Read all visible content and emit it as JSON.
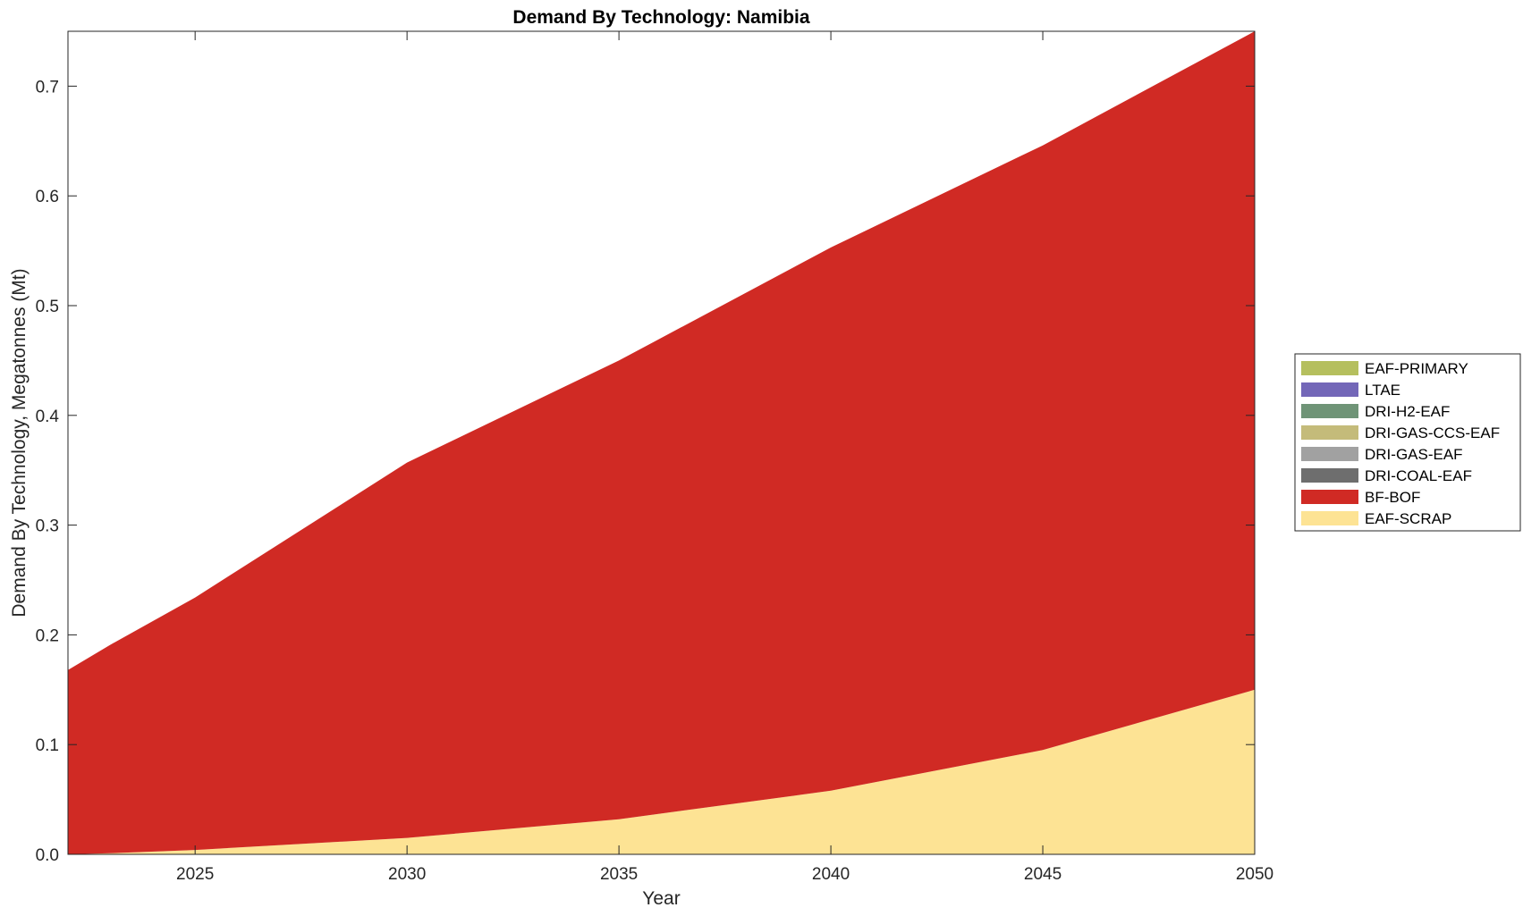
{
  "chart_data": {
    "type": "area",
    "stacked": true,
    "title": "Demand By Technology: Namibia",
    "xlabel": "Year",
    "ylabel": "Demand By Technology, Megatonnes (Mt)",
    "xlim": [
      2022,
      2050
    ],
    "ylim": [
      0,
      0.75
    ],
    "xticks": [
      2025,
      2030,
      2035,
      2040,
      2045,
      2050
    ],
    "yticks": [
      0.0,
      0.1,
      0.2,
      0.3,
      0.4,
      0.5,
      0.6,
      0.7
    ],
    "ytick_labels": [
      "0.0",
      "0.1",
      "0.2",
      "0.3",
      "0.4",
      "0.5",
      "0.6",
      "0.7"
    ],
    "legend_position": "right",
    "x": [
      2022,
      2023,
      2025,
      2030,
      2035,
      2040,
      2045,
      2050
    ],
    "series": [
      {
        "name": "EAF-PRIMARY",
        "color": "#b5bf5e",
        "values": [
          0,
          0,
          0,
          0,
          0,
          0,
          0,
          0
        ]
      },
      {
        "name": "LTAE",
        "color": "#7367b8",
        "values": [
          0,
          0,
          0,
          0,
          0,
          0,
          0,
          0
        ]
      },
      {
        "name": "DRI-H2-EAF",
        "color": "#6f9477",
        "values": [
          0,
          0,
          0,
          0,
          0,
          0,
          0,
          0
        ]
      },
      {
        "name": "DRI-GAS-CCS-EAF",
        "color": "#c4bb7a",
        "values": [
          0,
          0,
          0,
          0,
          0,
          0,
          0,
          0
        ]
      },
      {
        "name": "DRI-GAS-EAF",
        "color": "#a1a1a1",
        "values": [
          0,
          0,
          0,
          0,
          0,
          0,
          0,
          0
        ]
      },
      {
        "name": "DRI-COAL-EAF",
        "color": "#6e6e6e",
        "values": [
          0,
          0,
          0,
          0,
          0,
          0,
          0,
          0
        ]
      },
      {
        "name": "BF-BOF",
        "color": "#d02a24",
        "values": [
          0.168,
          0.19,
          0.23,
          0.342,
          0.418,
          0.495,
          0.551,
          0.6
        ]
      },
      {
        "name": "EAF-SCRAP",
        "color": "#fde394",
        "values": [
          0.0,
          0.001,
          0.004,
          0.015,
          0.032,
          0.058,
          0.095,
          0.15
        ]
      }
    ]
  }
}
